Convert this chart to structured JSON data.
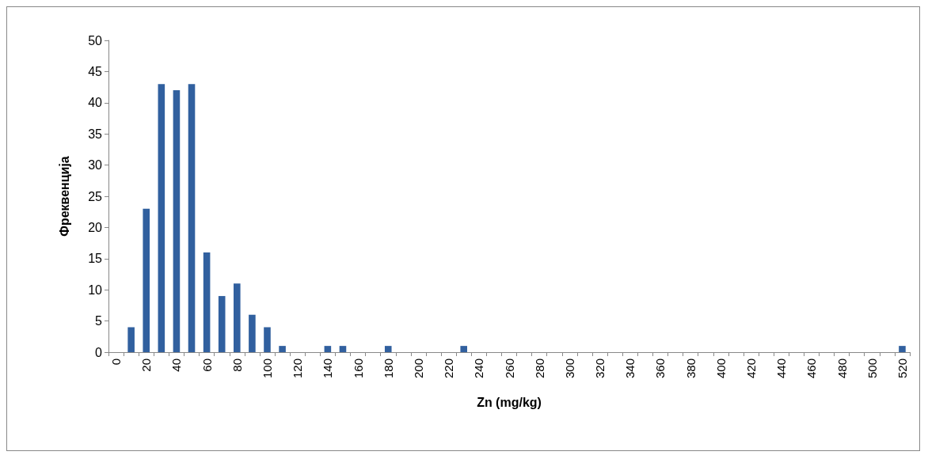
{
  "chart_data": {
    "type": "bar",
    "xlabel": "Zn (mg/kg)",
    "ylabel": "Фреквенција",
    "categories": [
      "0",
      null,
      "20",
      null,
      "40",
      null,
      "60",
      null,
      "80",
      null,
      "100",
      null,
      "120",
      null,
      "140",
      null,
      "160",
      null,
      "180",
      null,
      "200",
      null,
      "220",
      null,
      "240",
      null,
      "260",
      null,
      "280",
      null,
      "300",
      null,
      "320",
      null,
      "340",
      null,
      "360",
      null,
      "380",
      null,
      "400",
      null,
      "420",
      null,
      "440",
      null,
      "460",
      null,
      "480",
      null,
      "500",
      null,
      "520"
    ],
    "values": [
      0,
      4,
      23,
      43,
      42,
      43,
      16,
      9,
      11,
      6,
      4,
      1,
      0,
      0,
      1,
      1,
      0,
      0,
      1,
      0,
      0,
      0,
      0,
      1,
      0,
      0,
      0,
      0,
      0,
      0,
      0,
      0,
      0,
      0,
      0,
      0,
      0,
      0,
      0,
      0,
      0,
      0,
      0,
      0,
      0,
      0,
      0,
      0,
      0,
      0,
      0,
      0,
      1
    ],
    "color": "#31609f",
    "ylim": [
      0,
      50
    ],
    "yticks": [
      0,
      5,
      10,
      15,
      20,
      25,
      30,
      35,
      40,
      45,
      50
    ],
    "grid": false
  }
}
